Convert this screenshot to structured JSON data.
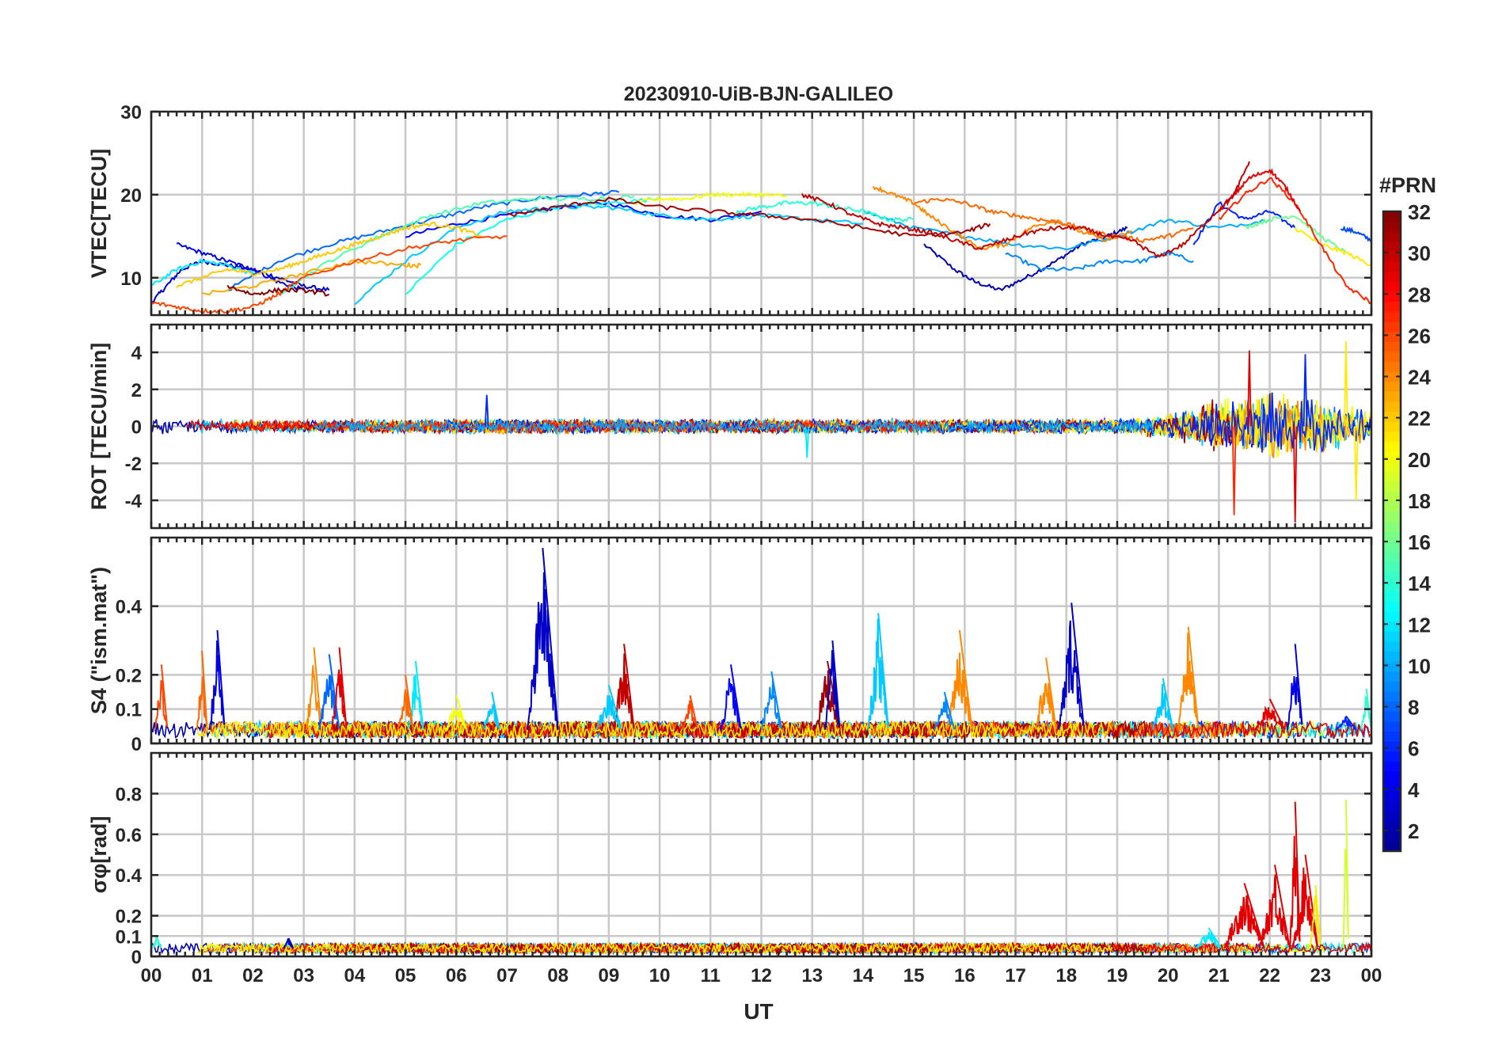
{
  "figure": {
    "title": "20230910-UiB-BJN-GALILEO",
    "xlabel": "UT",
    "x_tick_labels": [
      "00",
      "01",
      "02",
      "03",
      "04",
      "05",
      "06",
      "07",
      "08",
      "09",
      "10",
      "11",
      "12",
      "13",
      "14",
      "15",
      "16",
      "17",
      "18",
      "19",
      "20",
      "21",
      "22",
      "23",
      "00"
    ]
  },
  "colorbar": {
    "label": "#PRN",
    "tick_labels": [
      "2",
      "4",
      "6",
      "8",
      "10",
      "12",
      "14",
      "16",
      "18",
      "20",
      "22",
      "24",
      "26",
      "28",
      "30",
      "32"
    ],
    "range": [
      1,
      32
    ],
    "colormap": "jet",
    "colors": [
      "#00008f",
      "#0000ff",
      "#0080ff",
      "#00ffff",
      "#80ff80",
      "#ffff00",
      "#ff8000",
      "#ff0000",
      "#800000"
    ]
  },
  "chart_data": [
    {
      "type": "line",
      "panel": "vtec",
      "ylabel": "VTEC[TECU]",
      "ylim": [
        5.5,
        30
      ],
      "y_tick_labels": [
        "10",
        "20",
        "30"
      ],
      "y_ticks": [
        10,
        20,
        30
      ],
      "xlim": [
        0,
        24
      ],
      "grid": true,
      "series": [
        {
          "prn": 2,
          "x": [
            15.2,
            15.8,
            16.2,
            16.7,
            17.2,
            17.8,
            18.3,
            18.8,
            19.2
          ],
          "y": [
            14,
            11,
            9.5,
            8.5,
            10,
            12,
            14,
            15,
            16
          ]
        },
        {
          "prn": 3,
          "x": [
            0.0,
            0.3,
            0.6,
            1.0,
            1.5,
            2.0,
            2.5,
            3.0,
            3.5
          ],
          "y": [
            7,
            9,
            11,
            12,
            11.5,
            11,
            10,
            9,
            8.5
          ]
        },
        {
          "prn": 4,
          "x": [
            0.5,
            1.0,
            1.5,
            2.0,
            2.5,
            3.0
          ],
          "y": [
            14,
            13,
            12,
            11,
            9.5,
            8.5
          ]
        },
        {
          "prn": 5,
          "x": [
            5.0,
            6.0,
            7.0,
            8.0,
            9.0,
            10.0,
            11.0,
            12.0
          ],
          "y": [
            15,
            16.5,
            17.5,
            18.5,
            19,
            17.5,
            17,
            18
          ]
        },
        {
          "prn": 6,
          "x": [
            20.5,
            21.0,
            21.5,
            22.0,
            22.5
          ],
          "y": [
            14,
            19,
            17,
            18,
            16
          ]
        },
        {
          "prn": 7,
          "x": [
            23.4,
            23.7,
            24.0
          ],
          "y": [
            16,
            15.5,
            14.5
          ]
        },
        {
          "prn": 8,
          "x": [
            1.5,
            2.5,
            3.5,
            4.5,
            5.5,
            6.5,
            7.5,
            8.5,
            9.2
          ],
          "y": [
            8.5,
            12,
            14,
            15.5,
            17,
            18.5,
            19.5,
            20,
            20.3
          ]
        },
        {
          "prn": 9,
          "x": [
            16.8,
            17.5,
            18.2,
            18.8,
            19.5,
            20.0,
            20.5
          ],
          "y": [
            13,
            11,
            11,
            12,
            12,
            13,
            12
          ]
        },
        {
          "prn": 10,
          "x": [
            14.0,
            15.0,
            16.0,
            17.0,
            18.0,
            19.0,
            20.0,
            21.0,
            22.0
          ],
          "y": [
            18,
            16,
            15,
            14,
            13.5,
            15,
            17,
            16,
            17
          ]
        },
        {
          "prn": 11,
          "x": [
            4.0,
            5.0,
            6.0,
            7.0,
            8.0,
            9.0,
            10.0,
            11.0,
            12.0,
            13.0,
            14.0
          ],
          "y": [
            7,
            12,
            16,
            18,
            18.5,
            18.5,
            17.5,
            17,
            17.5,
            17,
            16.5
          ]
        },
        {
          "prn": 12,
          "x": [
            0.0,
            0.5,
            1.0,
            1.5,
            2.0
          ],
          "y": [
            9,
            11,
            12,
            11.5,
            10.5
          ]
        },
        {
          "prn": 13,
          "x": [
            5.0,
            6.0,
            7.0,
            8.0,
            9.0,
            10.0
          ],
          "y": [
            8,
            14,
            17,
            18.5,
            19,
            19.5
          ]
        },
        {
          "prn": 14,
          "x": [
            11.5,
            12.0,
            12.5,
            13.0,
            13.5,
            14.0,
            14.5,
            15.0
          ],
          "y": [
            18,
            18.5,
            19,
            19,
            18.5,
            18,
            17,
            17
          ]
        },
        {
          "prn": 15,
          "x": [
            2.5,
            3.5,
            4.5,
            5.5,
            6.5,
            7.5,
            8.5,
            9.5
          ],
          "y": [
            8,
            12,
            15,
            17.5,
            19,
            19.5,
            19.5,
            19.8
          ]
        },
        {
          "prn": 16,
          "x": [
            21.5,
            22.0,
            22.5,
            23.0,
            23.5
          ],
          "y": [
            16,
            17,
            17.5,
            15,
            13
          ]
        },
        {
          "prn": 20,
          "x": [
            9.5,
            10.0,
            10.5,
            11.0,
            11.5,
            12.0,
            12.5
          ],
          "y": [
            19,
            19.5,
            19.5,
            20,
            20,
            20,
            19.8
          ]
        },
        {
          "prn": 21,
          "x": [
            22.5,
            23.0,
            23.5,
            24.0
          ],
          "y": [
            16,
            14,
            13,
            11.5
          ]
        },
        {
          "prn": 22,
          "x": [
            0.5,
            1.0,
            1.5,
            2.0,
            2.5,
            3.0,
            3.5,
            4.0,
            4.5,
            5.0,
            5.5,
            6.0,
            6.5
          ],
          "y": [
            9,
            10,
            11,
            10.5,
            11,
            12,
            13,
            14,
            15,
            16,
            16.5,
            16,
            15
          ]
        },
        {
          "prn": 23,
          "x": [
            1.0,
            2.0,
            3.0,
            4.0,
            5.0,
            5.3
          ],
          "y": [
            8,
            9,
            10.5,
            12,
            11.5,
            11.5
          ]
        },
        {
          "prn": 24,
          "x": [
            14.2,
            14.6,
            15.0,
            15.3,
            15.8,
            16.3,
            16.8,
            17.3,
            17.8,
            18.3,
            18.8,
            19.3
          ],
          "y": [
            21,
            20,
            19,
            17.5,
            15.5,
            13.5,
            14,
            16,
            17,
            15.5,
            14.5,
            15.5
          ]
        },
        {
          "prn": 25,
          "x": [
            15.0,
            15.5,
            16.0,
            16.5,
            17.0,
            17.5,
            18.0,
            18.5,
            19.0,
            19.5,
            20.0,
            20.5
          ],
          "y": [
            19,
            19.5,
            19,
            18,
            17.5,
            17,
            16.5,
            15.5,
            15,
            14.5,
            15,
            16
          ]
        },
        {
          "prn": 26,
          "x": [
            0.0,
            0.5,
            1.0,
            1.5,
            2.0,
            2.5,
            3.0,
            4.0,
            5.0,
            6.0,
            7.0
          ],
          "y": [
            7,
            6.5,
            6,
            6,
            6.5,
            8,
            10,
            12,
            13.5,
            14.5,
            15
          ]
        },
        {
          "prn": 27,
          "x": [
            21.0,
            21.5,
            22.0,
            22.5,
            23.0,
            23.5,
            24.0
          ],
          "y": [
            17,
            20,
            22,
            19,
            14,
            9,
            7
          ]
        },
        {
          "prn": 29,
          "x": [
            21.0,
            21.3,
            21.6,
            22.0,
            22.3,
            22.6
          ],
          "y": [
            18,
            20,
            22,
            23,
            21,
            18
          ]
        },
        {
          "prn": 30,
          "x": [
            12.8,
            13.3,
            13.8,
            14.3,
            14.8,
            15.3,
            15.8,
            16.3,
            16.8,
            17.3,
            17.8,
            18.3,
            18.8,
            19.3,
            19.8,
            20.3,
            20.8,
            21.3,
            21.6
          ],
          "y": [
            20,
            19,
            17.5,
            16.5,
            16,
            15.5,
            14.5,
            13.5,
            14.5,
            15.5,
            16,
            16,
            15,
            14.5,
            12.5,
            14,
            17,
            20,
            24
          ]
        },
        {
          "prn": 31,
          "x": [
            7.0,
            8.0,
            9.0,
            10.0,
            11.0,
            12.0,
            13.0,
            14.0,
            15.0,
            16.0,
            16.5
          ],
          "y": [
            17.5,
            18.5,
            19.5,
            18.5,
            18,
            17.5,
            17,
            16,
            15,
            15.5,
            16.5
          ]
        },
        {
          "prn": 32,
          "x": [
            1.5,
            2.0,
            2.5,
            3.0,
            3.5
          ],
          "y": [
            9,
            8,
            8.5,
            8.5,
            8
          ]
        }
      ]
    },
    {
      "type": "line",
      "panel": "rot",
      "ylabel": "ROT [TECU/min]",
      "ylim": [
        -5.5,
        5.5
      ],
      "y_tick_labels": [
        "-4",
        "-2",
        "0",
        "2",
        "4"
      ],
      "y_ticks": [
        -4,
        -2,
        0,
        2,
        4
      ],
      "xlim": [
        0,
        24
      ],
      "grid": true,
      "noise_profile": {
        "description_of_amplitude_vs_time": "fluctuations about zero",
        "x": [
          0,
          2,
          5,
          8,
          12,
          16,
          19,
          20,
          21,
          22,
          23,
          24
        ],
        "amplitude": [
          0.9,
          0.7,
          0.8,
          0.9,
          0.8,
          0.8,
          0.9,
          1.4,
          3.2,
          4.0,
          3.2,
          1.8
        ]
      },
      "peaks": [
        {
          "prn": 29,
          "x": 21.6,
          "y": 4.1
        },
        {
          "prn": 27,
          "x": 21.3,
          "y": -4.8
        },
        {
          "prn": 29,
          "x": 22.5,
          "y": -5.2
        },
        {
          "prn": 21,
          "x": 23.5,
          "y": 4.6
        },
        {
          "prn": 21,
          "x": 23.7,
          "y": -4.0
        },
        {
          "prn": 6,
          "x": 22.7,
          "y": 3.9
        },
        {
          "prn": 12,
          "x": 12.9,
          "y": -1.7
        },
        {
          "prn": 6,
          "x": 6.6,
          "y": 1.7
        }
      ]
    },
    {
      "type": "line",
      "panel": "s4",
      "ylabel": "S4 (\"ism.mat\")",
      "ylim": [
        0,
        0.6
      ],
      "y_tick_labels": [
        "0",
        "0.1",
        "0.2",
        "0.4"
      ],
      "y_ticks": [
        0,
        0.1,
        0.2,
        0.4
      ],
      "xlim": [
        0,
        24
      ],
      "grid": true,
      "baseline": 0.04,
      "bursts": [
        {
          "prn": 26,
          "x": 0.2,
          "peak": 0.23,
          "width": 0.25
        },
        {
          "prn": 4,
          "x": 1.3,
          "peak": 0.33,
          "width": 0.3
        },
        {
          "prn": 25,
          "x": 1.0,
          "peak": 0.27,
          "width": 0.2
        },
        {
          "prn": 24,
          "x": 3.2,
          "peak": 0.28,
          "width": 0.3
        },
        {
          "prn": 8,
          "x": 3.5,
          "peak": 0.26,
          "width": 0.4
        },
        {
          "prn": 29,
          "x": 3.7,
          "peak": 0.28,
          "width": 0.3
        },
        {
          "prn": 12,
          "x": 5.2,
          "peak": 0.24,
          "width": 0.3
        },
        {
          "prn": 25,
          "x": 5.0,
          "peak": 0.2,
          "width": 0.3
        },
        {
          "prn": 20,
          "x": 6.0,
          "peak": 0.14,
          "width": 0.4
        },
        {
          "prn": 11,
          "x": 6.7,
          "peak": 0.15,
          "width": 0.3
        },
        {
          "prn": 3,
          "x": 7.7,
          "peak": 0.57,
          "width": 0.6
        },
        {
          "prn": 30,
          "x": 9.3,
          "peak": 0.29,
          "width": 0.4
        },
        {
          "prn": 11,
          "x": 9.0,
          "peak": 0.17,
          "width": 0.5
        },
        {
          "prn": 26,
          "x": 10.6,
          "peak": 0.14,
          "width": 0.3
        },
        {
          "prn": 5,
          "x": 11.4,
          "peak": 0.23,
          "width": 0.4
        },
        {
          "prn": 9,
          "x": 12.2,
          "peak": 0.21,
          "width": 0.4
        },
        {
          "prn": 31,
          "x": 13.3,
          "peak": 0.24,
          "width": 0.5
        },
        {
          "prn": 3,
          "x": 13.4,
          "peak": 0.3,
          "width": 0.3
        },
        {
          "prn": 11,
          "x": 14.3,
          "peak": 0.38,
          "width": 0.4
        },
        {
          "prn": 24,
          "x": 15.9,
          "peak": 0.33,
          "width": 0.5
        },
        {
          "prn": 9,
          "x": 15.6,
          "peak": 0.15,
          "width": 0.4
        },
        {
          "prn": 24,
          "x": 17.6,
          "peak": 0.25,
          "width": 0.4
        },
        {
          "prn": 3,
          "x": 18.1,
          "peak": 0.41,
          "width": 0.5
        },
        {
          "prn": 11,
          "x": 19.9,
          "peak": 0.19,
          "width": 0.4
        },
        {
          "prn": 24,
          "x": 20.4,
          "peak": 0.34,
          "width": 0.4
        },
        {
          "prn": 4,
          "x": 22.5,
          "peak": 0.29,
          "width": 0.3
        },
        {
          "prn": 29,
          "x": 22.0,
          "peak": 0.13,
          "width": 0.6
        },
        {
          "prn": 6,
          "x": 23.5,
          "peak": 0.08,
          "width": 0.4
        },
        {
          "prn": 14,
          "x": 23.9,
          "peak": 0.16,
          "width": 0.2
        }
      ]
    },
    {
      "type": "line",
      "panel": "sigma_phi",
      "ylabel": "σφ[rad]",
      "ylim": [
        0,
        1.0
      ],
      "y_tick_labels": [
        "0",
        "0.1",
        "0.2",
        "0.4",
        "0.6",
        "0.8"
      ],
      "y_ticks": [
        0,
        0.1,
        0.2,
        0.4,
        0.6,
        0.8
      ],
      "xlim": [
        0,
        24
      ],
      "grid": true,
      "baseline": 0.04,
      "bursts": [
        {
          "prn": 29,
          "x": 21.5,
          "peak": 0.36,
          "width": 0.8
        },
        {
          "prn": 29,
          "x": 22.1,
          "peak": 0.45,
          "width": 0.6
        },
        {
          "prn": 29,
          "x": 22.5,
          "peak": 0.76,
          "width": 0.2
        },
        {
          "prn": 29,
          "x": 22.7,
          "peak": 0.5,
          "width": 0.5
        },
        {
          "prn": 19,
          "x": 23.5,
          "peak": 0.77,
          "width": 0.1
        },
        {
          "prn": 21,
          "x": 22.9,
          "peak": 0.35,
          "width": 0.2
        },
        {
          "prn": 12,
          "x": 20.8,
          "peak": 0.14,
          "width": 0.5
        },
        {
          "prn": 14,
          "x": 0.1,
          "peak": 0.1,
          "width": 0.2
        },
        {
          "prn": 3,
          "x": 2.7,
          "peak": 0.09,
          "width": 0.2
        }
      ]
    }
  ]
}
